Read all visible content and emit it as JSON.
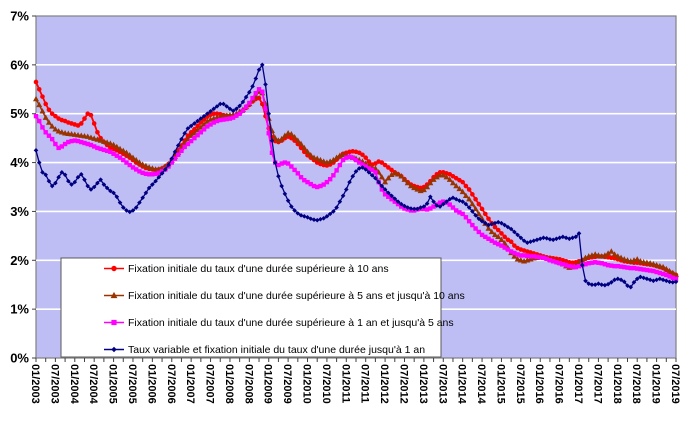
{
  "chart_data": {
    "type": "line",
    "title": "",
    "xlabel": "",
    "ylabel": "",
    "ylim": [
      0,
      7
    ],
    "grid": "horizontal-white",
    "legend_position": "bottom-left-overlay",
    "colors": {
      "plot_background": "#BEBEF5",
      "gridline": "#FFFFFF",
      "plot_border": "#808080",
      "axis_text": "#000000",
      "legend_border": "#5a5a5a",
      "legend_background": "#FFFFFF"
    },
    "y_tick_labels": [
      "7%",
      "6%",
      "5%",
      "4%",
      "3%",
      "2%",
      "1%",
      "0%"
    ],
    "x_tick_labels": [
      "01/2003",
      "07/2003",
      "01/2004",
      "07/2004",
      "01/2005",
      "07/2005",
      "01/2006",
      "07/2006",
      "01/2007",
      "07/2007",
      "01/2008",
      "07/2008",
      "01/2009",
      "07/2009",
      "01/2010",
      "07/2010",
      "01/2011",
      "07/2011",
      "01/2012",
      "07/2012",
      "01/2013",
      "07/2013",
      "01/2014",
      "07/2014",
      "01/2015",
      "07/2015",
      "01/2016",
      "07/2016",
      "01/2017",
      "07/2017",
      "01/2018",
      "07/2018",
      "01/2019",
      "07/2019",
      ""
    ],
    "x_label_every_n_points": 6,
    "points_start": "01/2003",
    "points_end": "07/2019",
    "points_frequency": "monthly",
    "series": [
      {
        "name": "Fixation initiale du taux d'une durée supérieure à 10 ans",
        "color": "#FF0000",
        "marker": "circle",
        "values": [
          5.65,
          5.5,
          5.35,
          5.2,
          5.08,
          5.0,
          4.95,
          4.9,
          4.87,
          4.85,
          4.82,
          4.8,
          4.78,
          4.76,
          4.8,
          4.9,
          5.0,
          4.97,
          4.8,
          4.62,
          4.5,
          4.42,
          4.36,
          4.3,
          4.28,
          4.25,
          4.22,
          4.18,
          4.14,
          4.1,
          4.05,
          4.0,
          3.96,
          3.92,
          3.89,
          3.87,
          3.86,
          3.85,
          3.86,
          3.88,
          3.92,
          3.97,
          4.05,
          4.15,
          4.25,
          4.35,
          4.45,
          4.55,
          4.62,
          4.68,
          4.75,
          4.82,
          4.88,
          4.94,
          4.98,
          5.0,
          5.0,
          4.99,
          4.97,
          4.96,
          4.95,
          4.94,
          4.96,
          5.0,
          5.06,
          5.12,
          5.18,
          5.25,
          5.3,
          5.32,
          5.2,
          4.95,
          4.7,
          4.52,
          4.44,
          4.42,
          4.45,
          4.5,
          4.53,
          4.5,
          4.45,
          4.38,
          4.3,
          4.22,
          4.15,
          4.1,
          4.05,
          4.0,
          3.97,
          3.95,
          3.94,
          3.96,
          4.0,
          4.06,
          4.12,
          4.18,
          4.2,
          4.22,
          4.23,
          4.22,
          4.2,
          4.16,
          4.1,
          4.02,
          3.96,
          3.98,
          4.02,
          4.0,
          3.95,
          3.9,
          3.85,
          3.8,
          3.76,
          3.72,
          3.66,
          3.6,
          3.55,
          3.52,
          3.5,
          3.48,
          3.5,
          3.55,
          3.62,
          3.7,
          3.76,
          3.8,
          3.8,
          3.78,
          3.76,
          3.72,
          3.68,
          3.64,
          3.6,
          3.52,
          3.45,
          3.35,
          3.25,
          3.15,
          3.05,
          2.95,
          2.85,
          2.76,
          2.68,
          2.62,
          2.55,
          2.48,
          2.42,
          2.38,
          2.3,
          2.25,
          2.22,
          2.2,
          2.18,
          2.16,
          2.14,
          2.12,
          2.1,
          2.08,
          2.06,
          2.05,
          2.04,
          2.03,
          2.02,
          2.0,
          1.98,
          1.96,
          1.95,
          1.96,
          1.98,
          2.0,
          2.03,
          2.05,
          2.06,
          2.07,
          2.08,
          2.08,
          2.07,
          2.06,
          2.05,
          2.04,
          2.02,
          2.0,
          1.98,
          1.97,
          1.96,
          1.95,
          1.95,
          1.94,
          1.93,
          1.92,
          1.91,
          1.9,
          1.88,
          1.86,
          1.84,
          1.8,
          1.76,
          1.73,
          1.7
        ]
      },
      {
        "name": "Fixation initiale du taux d'une durée supérieure à 5 ans et jusqu'à 10 ans",
        "color": "#993300",
        "marker": "triangle",
        "values": [
          5.3,
          5.18,
          5.05,
          4.92,
          4.82,
          4.74,
          4.68,
          4.64,
          4.62,
          4.6,
          4.59,
          4.58,
          4.57,
          4.56,
          4.55,
          4.54,
          4.53,
          4.51,
          4.49,
          4.47,
          4.45,
          4.43,
          4.41,
          4.39,
          4.36,
          4.32,
          4.28,
          4.24,
          4.2,
          4.15,
          4.1,
          4.05,
          4.0,
          3.96,
          3.93,
          3.9,
          3.88,
          3.86,
          3.86,
          3.88,
          3.92,
          3.97,
          4.04,
          4.12,
          4.2,
          4.3,
          4.4,
          4.48,
          4.55,
          4.6,
          4.66,
          4.72,
          4.78,
          4.84,
          4.88,
          4.9,
          4.92,
          4.94,
          4.95,
          4.96,
          4.97,
          4.98,
          5.0,
          5.04,
          5.08,
          5.14,
          5.2,
          5.28,
          5.36,
          5.45,
          5.42,
          5.2,
          4.9,
          4.65,
          4.5,
          4.45,
          4.48,
          4.55,
          4.6,
          4.58,
          4.52,
          4.45,
          4.38,
          4.3,
          4.22,
          4.15,
          4.1,
          4.08,
          4.05,
          4.02,
          4.0,
          4.02,
          4.05,
          4.1,
          4.14,
          4.16,
          4.15,
          4.12,
          4.1,
          4.08,
          4.05,
          4.02,
          3.98,
          3.94,
          3.9,
          3.88,
          3.8,
          3.7,
          3.6,
          3.68,
          3.75,
          3.78,
          3.76,
          3.72,
          3.65,
          3.58,
          3.52,
          3.48,
          3.45,
          3.42,
          3.44,
          3.5,
          3.58,
          3.65,
          3.7,
          3.74,
          3.74,
          3.7,
          3.65,
          3.58,
          3.52,
          3.46,
          3.4,
          3.32,
          3.25,
          3.15,
          3.05,
          2.95,
          2.85,
          2.75,
          2.65,
          2.58,
          2.52,
          2.48,
          2.42,
          2.35,
          2.25,
          2.15,
          2.08,
          2.02,
          2.0,
          1.98,
          2.0,
          2.02,
          2.04,
          2.05,
          2.06,
          2.05,
          2.04,
          2.02,
          2.0,
          1.98,
          1.95,
          1.92,
          1.88,
          1.85,
          1.86,
          1.9,
          1.95,
          2.0,
          2.05,
          2.08,
          2.1,
          2.12,
          2.1,
          2.08,
          2.1,
          2.14,
          2.18,
          2.12,
          2.08,
          2.05,
          2.02,
          2.0,
          1.98,
          2.0,
          2.02,
          1.98,
          1.96,
          1.95,
          1.94,
          1.92,
          1.9,
          1.88,
          1.86,
          1.82,
          1.78,
          1.74,
          1.7
        ]
      },
      {
        "name": "Fixation initiale du taux d'une durée supérieure à 1 an et jusqu'à 5 ans",
        "color": "#FF00FF",
        "marker": "square",
        "values": [
          4.95,
          4.85,
          4.72,
          4.62,
          4.55,
          4.48,
          4.38,
          4.3,
          4.33,
          4.38,
          4.42,
          4.44,
          4.45,
          4.44,
          4.42,
          4.4,
          4.38,
          4.36,
          4.33,
          4.3,
          4.28,
          4.26,
          4.24,
          4.22,
          4.18,
          4.14,
          4.1,
          4.05,
          4.0,
          3.95,
          3.9,
          3.86,
          3.82,
          3.79,
          3.77,
          3.76,
          3.76,
          3.77,
          3.79,
          3.82,
          3.86,
          3.92,
          4.0,
          4.08,
          4.16,
          4.24,
          4.32,
          4.38,
          4.44,
          4.5,
          4.56,
          4.62,
          4.68,
          4.74,
          4.78,
          4.82,
          4.85,
          4.87,
          4.88,
          4.89,
          4.9,
          4.92,
          4.96,
          5.0,
          5.06,
          5.14,
          5.22,
          5.32,
          5.42,
          5.5,
          5.45,
          5.1,
          4.6,
          4.2,
          4.0,
          3.95,
          3.98,
          4.0,
          3.98,
          3.92,
          3.85,
          3.78,
          3.7,
          3.64,
          3.6,
          3.56,
          3.52,
          3.5,
          3.52,
          3.55,
          3.6,
          3.66,
          3.74,
          3.84,
          3.95,
          4.05,
          4.1,
          4.12,
          4.1,
          4.05,
          4.0,
          3.96,
          3.92,
          3.88,
          3.85,
          3.8,
          3.6,
          3.45,
          3.35,
          3.3,
          3.25,
          3.2,
          3.15,
          3.1,
          3.06,
          3.04,
          3.02,
          3.02,
          3.04,
          3.05,
          3.05,
          3.04,
          3.06,
          3.1,
          3.14,
          3.18,
          3.2,
          3.18,
          3.14,
          3.08,
          3.02,
          2.98,
          2.95,
          2.88,
          2.8,
          2.72,
          2.65,
          2.58,
          2.52,
          2.48,
          2.44,
          2.4,
          2.36,
          2.33,
          2.3,
          2.26,
          2.22,
          2.18,
          2.15,
          2.12,
          2.1,
          2.1,
          2.09,
          2.08,
          2.08,
          2.07,
          2.06,
          2.05,
          2.03,
          2.0,
          1.98,
          1.96,
          1.94,
          1.92,
          1.9,
          1.88,
          1.87,
          1.86,
          1.88,
          1.9,
          1.92,
          1.94,
          1.95,
          1.96,
          1.95,
          1.94,
          1.92,
          1.9,
          1.89,
          1.88,
          1.88,
          1.87,
          1.86,
          1.85,
          1.84,
          1.84,
          1.83,
          1.82,
          1.81,
          1.8,
          1.79,
          1.78,
          1.76,
          1.74,
          1.72,
          1.7,
          1.67,
          1.64,
          1.62
        ]
      },
      {
        "name": "Taux variable et fixation initiale du taux d'une durée jusqu'à 1 an",
        "color": "#000080",
        "marker": "diamond",
        "values": [
          4.25,
          4.0,
          3.8,
          3.75,
          3.62,
          3.52,
          3.58,
          3.7,
          3.8,
          3.75,
          3.62,
          3.55,
          3.6,
          3.7,
          3.76,
          3.65,
          3.52,
          3.45,
          3.5,
          3.58,
          3.65,
          3.55,
          3.48,
          3.42,
          3.38,
          3.3,
          3.18,
          3.08,
          3.02,
          2.99,
          3.02,
          3.08,
          3.18,
          3.28,
          3.38,
          3.48,
          3.55,
          3.62,
          3.7,
          3.78,
          3.86,
          3.95,
          4.08,
          4.22,
          4.35,
          4.48,
          4.6,
          4.7,
          4.75,
          4.8,
          4.85,
          4.9,
          4.95,
          5.0,
          5.05,
          5.1,
          5.15,
          5.2,
          5.2,
          5.15,
          5.1,
          5.06,
          5.1,
          5.16,
          5.24,
          5.34,
          5.44,
          5.56,
          5.72,
          5.9,
          6.0,
          5.6,
          5.0,
          4.45,
          4.0,
          3.72,
          3.52,
          3.36,
          3.22,
          3.1,
          3.02,
          2.96,
          2.92,
          2.9,
          2.88,
          2.85,
          2.83,
          2.82,
          2.84,
          2.86,
          2.9,
          2.95,
          3.0,
          3.08,
          3.2,
          3.32,
          3.45,
          3.6,
          3.72,
          3.82,
          3.88,
          3.9,
          3.86,
          3.8,
          3.74,
          3.68,
          3.6,
          3.52,
          3.45,
          3.38,
          3.32,
          3.26,
          3.2,
          3.15,
          3.11,
          3.08,
          3.06,
          3.05,
          3.05,
          3.08,
          3.1,
          3.16,
          3.3,
          3.2,
          3.12,
          3.1,
          3.15,
          3.2,
          3.25,
          3.28,
          3.25,
          3.22,
          3.2,
          3.15,
          3.08,
          3.0,
          2.92,
          2.85,
          2.8,
          2.76,
          2.72,
          2.74,
          2.76,
          2.78,
          2.76,
          2.72,
          2.68,
          2.64,
          2.58,
          2.52,
          2.46,
          2.4,
          2.36,
          2.38,
          2.4,
          2.42,
          2.44,
          2.46,
          2.45,
          2.43,
          2.42,
          2.44,
          2.46,
          2.48,
          2.46,
          2.44,
          2.46,
          2.48,
          2.55,
          1.9,
          1.58,
          1.52,
          1.5,
          1.5,
          1.52,
          1.5,
          1.49,
          1.51,
          1.55,
          1.6,
          1.62,
          1.6,
          1.56,
          1.48,
          1.45,
          1.55,
          1.62,
          1.66,
          1.64,
          1.62,
          1.6,
          1.58,
          1.6,
          1.62,
          1.6,
          1.58,
          1.56,
          1.55,
          1.56
        ]
      }
    ]
  }
}
